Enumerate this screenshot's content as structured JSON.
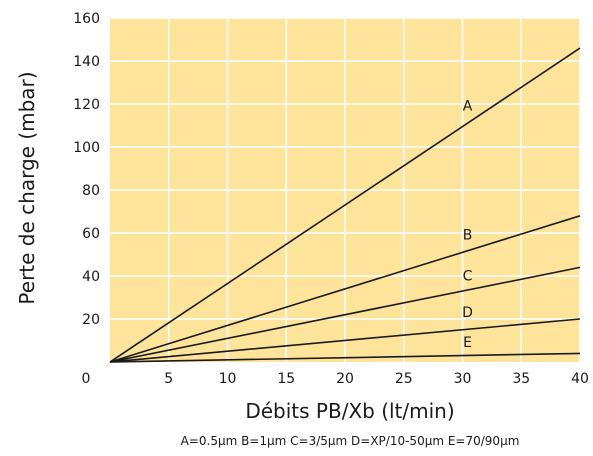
{
  "chart_data": {
    "type": "line",
    "xlabel": "Débits PB/Xb (lt/min)",
    "ylabel": "Perte de charge (mbar)",
    "xlim": [
      0,
      40
    ],
    "ylim": [
      0,
      160
    ],
    "x_ticks": [
      0,
      5,
      10,
      15,
      20,
      25,
      30,
      35,
      40
    ],
    "y_ticks": [
      20,
      40,
      60,
      80,
      100,
      120,
      140,
      160
    ],
    "x_tick_labels": [
      "0",
      "5",
      "10",
      "15",
      "20",
      "25",
      "30",
      "35",
      "40"
    ],
    "y_tick_labels": [
      "20",
      "40",
      "60",
      "80",
      "100",
      "120",
      "140",
      "160"
    ],
    "grid": true,
    "background_color": "#fde49a",
    "grid_color": "#ffffff",
    "line_color": "#1a1a1a",
    "series": [
      {
        "name": "A",
        "x": [
          0,
          40
        ],
        "y": [
          0,
          146
        ],
        "label_at": [
          30,
          117
        ]
      },
      {
        "name": "B",
        "x": [
          0,
          40
        ],
        "y": [
          0,
          68
        ],
        "label_at": [
          30,
          57
        ]
      },
      {
        "name": "C",
        "x": [
          0,
          40
        ],
        "y": [
          0,
          44
        ],
        "label_at": [
          30,
          38
        ]
      },
      {
        "name": "D",
        "x": [
          0,
          40
        ],
        "y": [
          0,
          20
        ],
        "label_at": [
          30,
          21
        ]
      },
      {
        "name": "E",
        "x": [
          0,
          40
        ],
        "y": [
          0,
          4
        ],
        "label_at": [
          30,
          7
        ]
      }
    ],
    "legend_text": "A=0.5µm B=1µm C=3/5µm D=XP/10-50µm E=70/90µm"
  }
}
